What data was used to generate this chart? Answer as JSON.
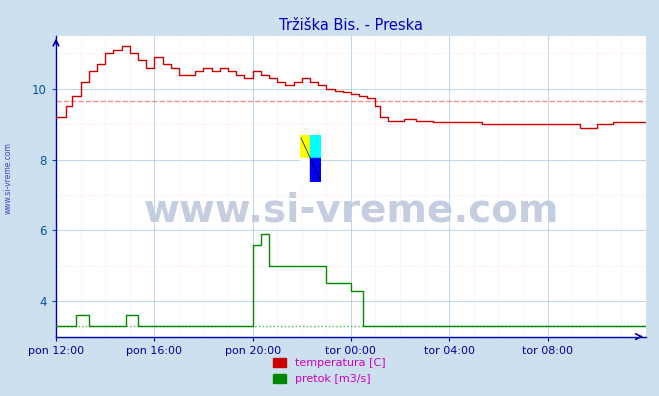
{
  "title": "Tržiška Bis. - Preska",
  "title_color": "#0000cc",
  "bg_color": "#cce0f0",
  "plot_bg_color": "#ffffff",
  "grid_major_color": "#aaccee",
  "grid_minor_color": "#ddeeff",
  "grid_minor_color2": "#ffcccc",
  "xlabel_color": "#0000aa",
  "ytick_color": "#0055aa",
  "xlim": [
    0,
    288
  ],
  "ylim": [
    3.0,
    11.5
  ],
  "yticks": [
    4,
    6,
    8,
    10
  ],
  "xtick_labels": [
    "pon 12:00",
    "pon 16:00",
    "pon 20:00",
    "tor 00:00",
    "tor 04:00",
    "tor 08:00"
  ],
  "xtick_positions": [
    0,
    48,
    96,
    144,
    192,
    240
  ],
  "temp_avg": 9.65,
  "flow_avg_scaled": 3.3,
  "temp_color": "#cc0000",
  "flow_color": "#008800",
  "avg_temp_color": "#ff8888",
  "avg_flow_color": "#44bb44",
  "watermark_text": "www.si-vreme.com",
  "watermark_color": "#1a3a8a",
  "watermark_alpha": 0.25,
  "watermark_fontsize": 28,
  "side_label": "www.si-vreme.com",
  "legend_temp": "temperatura [C]",
  "legend_flow": "pretok [m3/s]",
  "legend_color": "#cc00cc",
  "axis_color": "#0000cc",
  "spine_color": "#0000aa"
}
